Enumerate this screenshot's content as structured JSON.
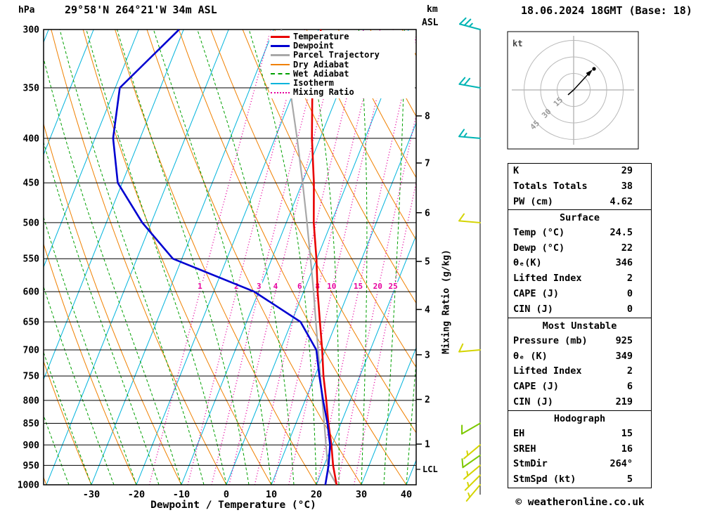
{
  "header": {
    "pressure_unit": "hPa",
    "station": "29°58'N 264°21'W 34m ASL",
    "km_label": "km",
    "asl_label": "ASL",
    "datetime": "18.06.2024 18GMT (Base: 18)"
  },
  "axes": {
    "x_label": "Dewpoint / Temperature (°C)",
    "mixing_ratio_label": "Mixing Ratio (g/kg)",
    "pressure_ticks": [
      300,
      350,
      400,
      450,
      500,
      550,
      600,
      650,
      700,
      750,
      800,
      850,
      900,
      950,
      1000
    ],
    "temp_ticks": [
      -30,
      -20,
      -10,
      0,
      10,
      20,
      30,
      40
    ],
    "km_ticks": [
      {
        "km": 8,
        "p": 377
      },
      {
        "km": 7,
        "p": 427
      },
      {
        "km": 6,
        "p": 487
      },
      {
        "km": 5,
        "p": 554
      },
      {
        "km": 4,
        "p": 629
      },
      {
        "km": 3,
        "p": 709
      },
      {
        "km": 2,
        "p": 798
      },
      {
        "km": 1,
        "p": 898
      }
    ],
    "lcl": {
      "label": "LCL",
      "p": 960
    }
  },
  "legend": [
    {
      "key": "temperature",
      "label": "Temperature",
      "color": "#e80000",
      "style": "solid",
      "weight": 3
    },
    {
      "key": "dewpoint",
      "label": "Dewpoint",
      "color": "#0000d0",
      "style": "solid",
      "weight": 3
    },
    {
      "key": "parcel",
      "label": "Parcel Trajectory",
      "color": "#a8a8a8",
      "style": "solid",
      "weight": 3
    },
    {
      "key": "dry_adiabat",
      "label": "Dry Adiabat",
      "color": "#f08000",
      "style": "solid",
      "weight": 2
    },
    {
      "key": "wet_adiabat",
      "label": "Wet Adiabat",
      "color": "#00a000",
      "style": "dashed",
      "weight": 2
    },
    {
      "key": "isotherm",
      "label": "Isotherm",
      "color": "#00b4dc",
      "style": "solid",
      "weight": 2
    },
    {
      "key": "mixing_ratio",
      "label": "Mixing Ratio",
      "color": "#e6009e",
      "style": "dotted",
      "weight": 2
    }
  ],
  "chart_data": {
    "type": "skewt-log-p",
    "pressure_range_hpa": [
      300,
      1000
    ],
    "temp_axis_range_c": [
      -40,
      45
    ],
    "sounding": {
      "pressure_hpa": [
        1000,
        950,
        900,
        850,
        800,
        750,
        700,
        650,
        600,
        550,
        500,
        450,
        400,
        350,
        300
      ],
      "temperature_c": [
        24.5,
        22,
        19.8,
        17.2,
        14.7,
        11.9,
        9.3,
        6.3,
        3.1,
        -0.1,
        -3.9,
        -7.4,
        -11.8,
        -16.2,
        -19.5
      ],
      "dewpoint_c": [
        22,
        21,
        19.5,
        17,
        14,
        11,
        8,
        2,
        -11,
        -32,
        -42,
        -51,
        -56,
        -59,
        -51
      ]
    },
    "parcel": {
      "pressure_hpa": [
        1000,
        960,
        950,
        900,
        850,
        800,
        750,
        700,
        650,
        600,
        550,
        500,
        450,
        400,
        350,
        300
      ],
      "temperature_c": [
        24.5,
        21.2,
        20.8,
        18.6,
        16.3,
        13.8,
        11.2,
        8.4,
        5.4,
        2.2,
        -1.4,
        -5.4,
        -9.9,
        -15.1,
        -21.2,
        -28.3
      ]
    },
    "mixing_ratio_lines_g_kg": [
      1,
      2,
      3,
      4,
      6,
      8,
      10,
      15,
      20,
      25
    ],
    "isotherm_step_c": 10,
    "dry_adiabat_step_c": 10,
    "wet_adiabat_step_c": 5,
    "wind_barbs": [
      {
        "p": 300,
        "color": "#00b4b4",
        "dir_deg": 285,
        "speed_kt": 25
      },
      {
        "p": 350,
        "color": "#00b4b4",
        "dir_deg": 280,
        "speed_kt": 20
      },
      {
        "p": 400,
        "color": "#00b4b4",
        "dir_deg": 275,
        "speed_kt": 15
      },
      {
        "p": 500,
        "color": "#d4d400",
        "dir_deg": 275,
        "speed_kt": 10
      },
      {
        "p": 700,
        "color": "#d4d400",
        "dir_deg": 265,
        "speed_kt": 10
      },
      {
        "p": 850,
        "color": "#7cc800",
        "dir_deg": 240,
        "speed_kt": 10
      },
      {
        "p": 900,
        "color": "#d4d400",
        "dir_deg": 230,
        "speed_kt": 5
      },
      {
        "p": 925,
        "color": "#7cc800",
        "dir_deg": 235,
        "speed_kt": 10
      },
      {
        "p": 950,
        "color": "#d4d400",
        "dir_deg": 230,
        "speed_kt": 5
      },
      {
        "p": 975,
        "color": "#d4d400",
        "dir_deg": 225,
        "speed_kt": 5
      },
      {
        "p": 1000,
        "color": "#d4d400",
        "dir_deg": 220,
        "speed_kt": 5
      }
    ]
  },
  "hodograph": {
    "unit_label": "kt",
    "ring_labels": [
      15,
      30,
      45
    ],
    "ring_spacing_kt": 15
  },
  "info_boxes": [
    {
      "name": "indices-box",
      "rows": [
        [
          "K",
          "29"
        ],
        [
          "Totals Totals",
          "38"
        ],
        [
          "PW (cm)",
          "4.62"
        ]
      ]
    },
    {
      "name": "surface-box",
      "title": "Surface",
      "rows": [
        [
          "Temp (°C)",
          "24.5"
        ],
        [
          "Dewp (°C)",
          "22"
        ],
        [
          "θₑ(K)",
          "346"
        ],
        [
          "Lifted Index",
          "2"
        ],
        [
          "CAPE (J)",
          "0"
        ],
        [
          "CIN (J)",
          "0"
        ]
      ]
    },
    {
      "name": "most-unstable-box",
      "title": "Most Unstable",
      "rows": [
        [
          "Pressure (mb)",
          "925"
        ],
        [
          "θₑ (K)",
          "349"
        ],
        [
          "Lifted Index",
          "2"
        ],
        [
          "CAPE (J)",
          "6"
        ],
        [
          "CIN (J)",
          "219"
        ]
      ]
    },
    {
      "name": "hodograph-stats-box",
      "title": "Hodograph",
      "rows": [
        [
          "EH",
          "15"
        ],
        [
          "SREH",
          "16"
        ],
        [
          "StmDir",
          "264°"
        ],
        [
          "StmSpd (kt)",
          "5"
        ]
      ]
    }
  ],
  "footer": {
    "copyright": "© weatheronline.co.uk"
  }
}
